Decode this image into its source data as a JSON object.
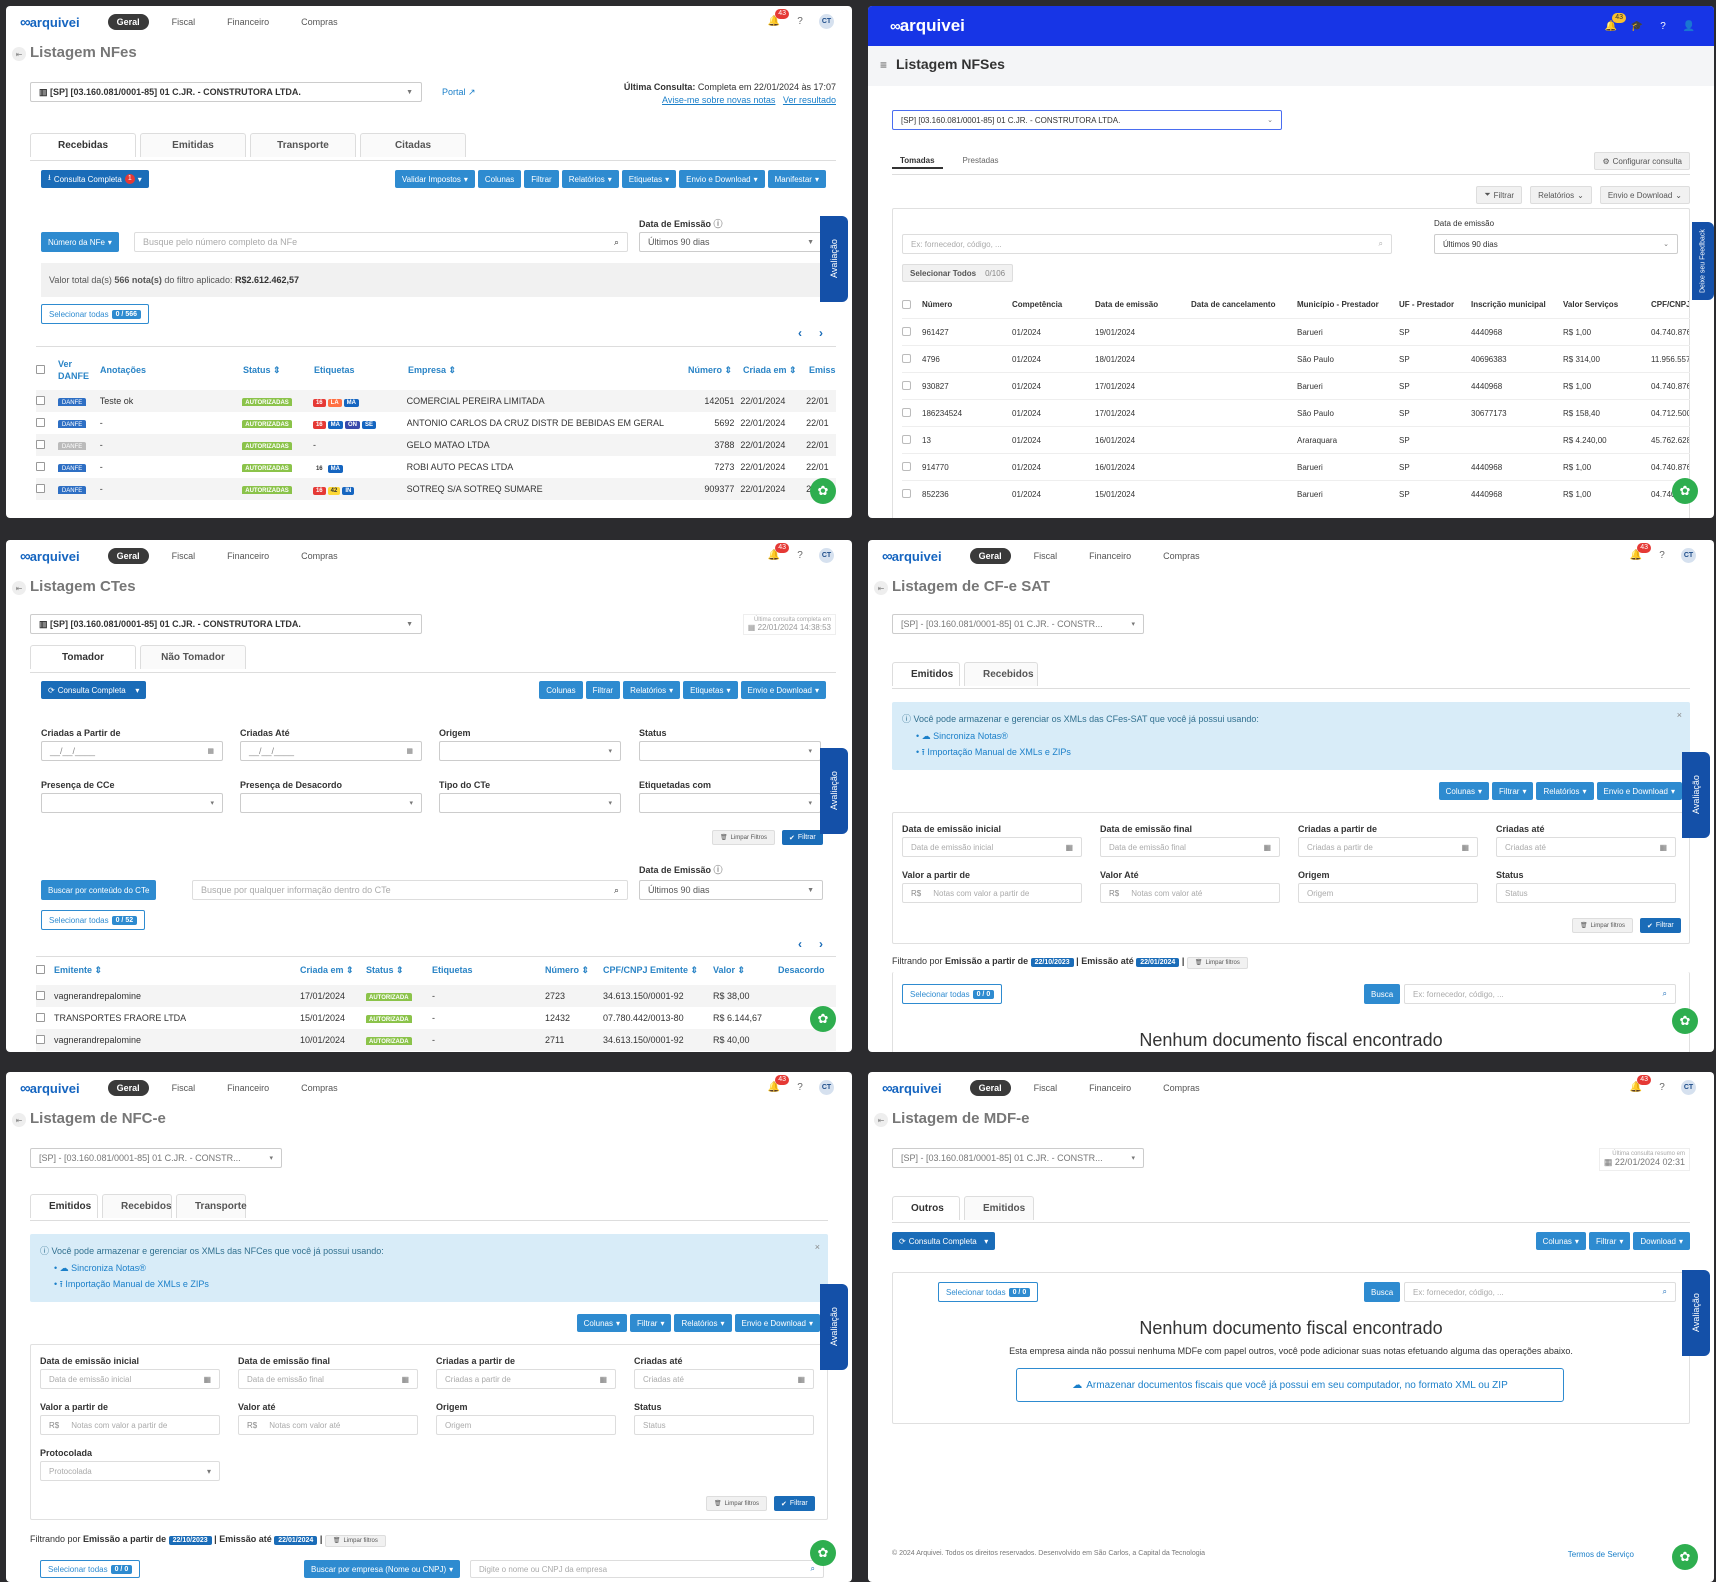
{
  "common": {
    "brand": "arquivei",
    "nav": [
      "Geral",
      "Fiscal",
      "Financeiro",
      "Compras"
    ],
    "notifications": "43",
    "avatar": "CT",
    "avaliacao": "Avaliação",
    "company_full": "[SP] [03.160.081/0001-85] 01 C.JR. - CONSTRUTORA LTDA.",
    "company_short": "[SP] - [03.160.081/0001-85] 01 C.JR. - CONSTR...",
    "periodo": "Últimos 90 dias",
    "data_emissao_label": "Data de Emissão",
    "colunas": "Colunas",
    "filtrar": "Filtrar",
    "relatorios": "Relatórios",
    "etiquetas": "Etiquetas",
    "envio_download": "Envio e Download",
    "download": "Download",
    "consulta_completa": "Consulta Completa",
    "limpar_filtros": "Limpar filtros",
    "limpar_filtros_cap": "Limpar Filtros",
    "busca": "Busca",
    "busca_ph": "Ex: fornecedor, código, ...",
    "nenhum": "Nenhum documento fiscal encontrado"
  },
  "nfe": {
    "title": "Listagem NFes",
    "portal": "Portal",
    "ultima_label": "Última Consulta:",
    "ultima_value": "Completa em 22/01/2024 às 17:07",
    "avise": "Avise-me sobre novas notas",
    "ver_resultado": "Ver resultado",
    "tabs": [
      "Recebidas",
      "Emitidas",
      "Transporte",
      "Citadas"
    ],
    "consulta_badge": "1",
    "buttons": [
      "Validar Impostos",
      "Colunas",
      "Filtrar",
      "Relatórios",
      "Etiquetas",
      "Envio e Download",
      "Manifestar"
    ],
    "search_type": "Número da NFe",
    "search_ph": "Busque pelo número completo da NFe",
    "total_prefix": "Valor total da(s)",
    "total_count": "566 nota(s)",
    "total_mid": "do filtro aplicado:",
    "total_value": "R$2.612.462,57",
    "selecionar": "Selecionar todas",
    "sel_count": "0 / 566",
    "columns": [
      "Ver DANFE",
      "Anotações",
      "Status",
      "Etiquetas",
      "Empresa",
      "Número",
      "Criada em",
      "Emiss"
    ],
    "rows": [
      {
        "danfe": "DANFE",
        "anot": "Teste ok",
        "status": "AUTORIZADAS",
        "tags": [
          [
            "16",
            "#e53935"
          ],
          [
            "LA",
            "#ff7043"
          ],
          [
            "MA",
            "#1565c0"
          ]
        ],
        "empresa": "COMERCIAL PEREIRA LIMITADA",
        "numero": "142051",
        "criada": "22/01/2024",
        "emiss": "22/01"
      },
      {
        "danfe": "DANFE",
        "anot": "-",
        "status": "AUTORIZADAS",
        "tags": [
          [
            "16",
            "#e53935"
          ],
          [
            "MA",
            "#1565c0"
          ],
          [
            "ON",
            "#3949ab"
          ],
          [
            "SE",
            "#1565c0"
          ]
        ],
        "empresa": "ANTONIO CARLOS DA CRUZ DISTR DE BEBIDAS EM GERAL",
        "numero": "5692",
        "criada": "22/01/2024",
        "emiss": "22/01"
      },
      {
        "danfe": "DANFE",
        "anot": "-",
        "status": "AUTORIZADAS",
        "tags": [],
        "tagtext": "-",
        "empresa": "GELO MATAO LTDA",
        "numero": "3788",
        "criada": "22/01/2024",
        "emiss": "22/01"
      },
      {
        "danfe": "DANFE",
        "anot": "-",
        "status": "AUTORIZADAS",
        "tags": [
          [
            "16",
            "#ffffff"
          ],
          [
            "MA",
            "#1565c0"
          ]
        ],
        "empresa": "ROBI AUTO PECAS LTDA",
        "numero": "7273",
        "criada": "22/01/2024",
        "emiss": "22/01"
      },
      {
        "danfe": "DANFE",
        "anot": "-",
        "status": "AUTORIZADAS",
        "tags": [
          [
            "16",
            "#e53935"
          ],
          [
            "42",
            "#fdd835"
          ],
          [
            "IN",
            "#1565c0"
          ]
        ],
        "empresa": "SOTREQ S/A SOTREQ SUMARE",
        "numero": "909377",
        "criada": "22/01/2024",
        "emiss": "22/01"
      }
    ]
  },
  "nfse": {
    "title": "Listagem NFSes",
    "tabs": [
      "Tomadas",
      "Prestadas"
    ],
    "configurar": "Configurar consulta",
    "data_emissao": "Data de emissão",
    "selecionar": "Selecionar Todos",
    "sel_count": "0/106",
    "feedback": "Deixe seu Feedback",
    "columns": [
      "Número",
      "Competência",
      "Data de emissão",
      "Data de cancelamento",
      "Município - Prestador",
      "UF - Prestador",
      "Inscrição municipal",
      "Valor Serviços",
      "CPF/CNPJ"
    ],
    "rows": [
      [
        "961427",
        "01/2024",
        "19/01/2024",
        "",
        "Barueri",
        "SP",
        "4440968",
        "R$ 1,00",
        "04.740.876"
      ],
      [
        "4796",
        "01/2024",
        "18/01/2024",
        "",
        "São Paulo",
        "SP",
        "40696383",
        "R$ 314,00",
        "11.956.557"
      ],
      [
        "930827",
        "01/2024",
        "17/01/2024",
        "",
        "Barueri",
        "SP",
        "4440968",
        "R$ 1,00",
        "04.740.876"
      ],
      [
        "186234524",
        "01/2024",
        "17/01/2024",
        "",
        "São Paulo",
        "SP",
        "30677173",
        "R$ 158,40",
        "04.712.500"
      ],
      [
        "13",
        "01/2024",
        "16/01/2024",
        "",
        "Araraquara",
        "SP",
        "",
        "R$ 4.240,00",
        "45.762.628"
      ],
      [
        "914770",
        "01/2024",
        "16/01/2024",
        "",
        "Barueri",
        "SP",
        "4440968",
        "R$ 1,00",
        "04.740.876"
      ],
      [
        "852236",
        "01/2024",
        "15/01/2024",
        "",
        "Barueri",
        "SP",
        "4440968",
        "R$ 1,00",
        "04.740"
      ]
    ]
  },
  "cte": {
    "title": "Listagem CTes",
    "ultima": "Última consulta completa em",
    "ultima_date": "22/01/2024 14:38:53",
    "tabs": [
      "Tomador",
      "Não Tomador"
    ],
    "filters": [
      "Criadas a Partir de",
      "Criadas Até",
      "Origem",
      "Status",
      "Presença de CCe",
      "Presença de Desacordo",
      "Tipo do CTe",
      "Etiquetadas com"
    ],
    "date_ph": "__/__/____",
    "search_type": "Buscar por conteúdo do CTe",
    "search_ph": "Busque por qualquer informação dentro do CTe",
    "selecionar": "Selecionar todas",
    "sel_count": "0 / 52",
    "columns": [
      "Emitente",
      "Criada em",
      "Status",
      "Etiquetas",
      "Número",
      "CPF/CNPJ Emitente",
      "Valor",
      "Desacordo"
    ],
    "rows": [
      [
        "vagnerandrepalomine",
        "17/01/2024",
        "AUTORIZADA",
        "-",
        "2723",
        "34.613.150/0001-92",
        "R$ 38,00"
      ],
      [
        "TRANSPORTES FRAORE LTDA",
        "15/01/2024",
        "AUTORIZADA",
        "-",
        "12432",
        "07.780.442/0013-80",
        "R$ 6.144,67"
      ],
      [
        "vagnerandrepalomine",
        "10/01/2024",
        "AUTORIZADA",
        "-",
        "2711",
        "34.613.150/0001-92",
        "R$ 40,00"
      ]
    ]
  },
  "cfe": {
    "title": "Listagem de CF-e SAT",
    "tabs": [
      "Emitidos",
      "Recebidos"
    ],
    "info": "Você pode armazenar e gerenciar os XMLs das CFes-SAT que você já possui usando:",
    "info_items": [
      "Sincroniza Notas®",
      "Importação Manual de XMLs e ZIPs"
    ],
    "filters": [
      {
        "label": "Data de emissão inicial",
        "ph": "Data de emissão inicial"
      },
      {
        "label": "Data de emissão final",
        "ph": "Data de emissão final"
      },
      {
        "label": "Criadas a partir de",
        "ph": "Criadas a partir de"
      },
      {
        "label": "Criadas até",
        "ph": "Criadas até"
      },
      {
        "label": "Valor a partir de",
        "ph": "Notas com valor a partir de"
      },
      {
        "label": "Valor Até",
        "ph": "Notas com valor até"
      },
      {
        "label": "Origem",
        "ph": "Origem"
      },
      {
        "label": "Status",
        "ph": "Status"
      }
    ],
    "filtrando": "Filtrando por",
    "emissao_partir": "Emissão a partir de",
    "d1": "22/10/2023",
    "emissao_ate": "Emissão até",
    "d2": "22/01/2024",
    "selecionar": "Selecionar todas",
    "sel_count": "0 / 0"
  },
  "nfce": {
    "title": "Listagem de NFC-e",
    "tabs": [
      "Emitidos",
      "Recebidos",
      "Transporte"
    ],
    "info": "Você pode armazenar e gerenciar os XMLs das NFCes que você já possui usando:",
    "info_items": [
      "Sincroniza Notas®",
      "Importação Manual de XMLs e ZIPs"
    ],
    "filters": [
      {
        "label": "Data de emissão inicial",
        "ph": "Data de emissão inicial"
      },
      {
        "label": "Data de emissão final",
        "ph": "Data de emissão final"
      },
      {
        "label": "Criadas a partir de",
        "ph": "Criadas a partir de"
      },
      {
        "label": "Criadas até",
        "ph": "Criadas até"
      },
      {
        "label": "Valor a partir de",
        "ph": "Notas com valor a partir de"
      },
      {
        "label": "Valor até",
        "ph": "Notas com valor até"
      },
      {
        "label": "Origem",
        "ph": "Origem"
      },
      {
        "label": "Status",
        "ph": "Status"
      },
      {
        "label": "Protocolada",
        "ph": "Protocolada"
      }
    ],
    "filtrando": "Filtrando por",
    "emissao_partir": "Emissão a partir de",
    "d1": "22/10/2023",
    "emissao_ate": "Emissão até",
    "d2": "22/01/2024",
    "selecionar": "Selecionar todas",
    "sel_count": "0 / 0",
    "search_type": "Buscar por empresa (Nome ou CNPJ)",
    "search_ph": "Digite o nome ou CNPJ da empresa"
  },
  "mdfe": {
    "title": "Listagem de MDF-e",
    "ultima": "Última consulta resumo em",
    "ultima_date": "22/01/2024 02:31",
    "tabs": [
      "Outros",
      "Emitidos"
    ],
    "selecionar": "Selecionar todas",
    "sel_count": "0 / 0",
    "desc": "Esta empresa ainda não possui nenhuma MDFe com papel outros, você pode adicionar suas notas efetuando alguma das operações abaixo.",
    "armazenar": "Armazenar documentos fiscais que você já possui em seu computador, no formato XML ou ZIP",
    "footer": "© 2024 Arquivei. Todos os direitos reservados. Desenvolvido em São Carlos, a Capital da Tecnologia",
    "termos": "Termos de Serviço"
  }
}
